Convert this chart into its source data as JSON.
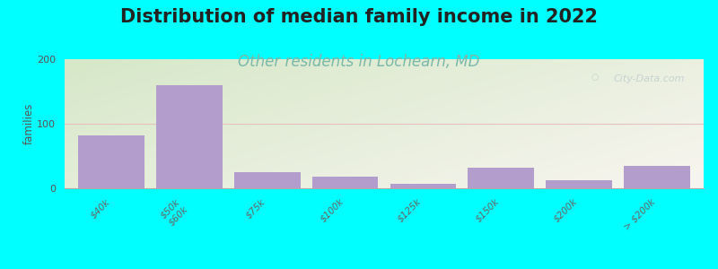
{
  "title": "Distribution of median family income in 2022",
  "subtitle": "Other residents in Lochearn, MD",
  "ylabel": "families",
  "background_color": "#00FFFF",
  "bar_color": "#b39dcc",
  "grid_color": "#e8c0c0",
  "categories": [
    "$40k",
    "$50k\n$60k",
    "$75k",
    "$100k",
    "$125k",
    "$150k",
    "$200k",
    "> $200k"
  ],
  "values": [
    82,
    160,
    25,
    18,
    7,
    32,
    13,
    35
  ],
  "ylim": [
    0,
    200
  ],
  "yticks": [
    0,
    100,
    200
  ],
  "title_fontsize": 15,
  "subtitle_fontsize": 12,
  "subtitle_color": "#7ab8a8",
  "watermark": "City-Data.com",
  "bar_width": 0.85,
  "plot_bg_left_top": "#d6e8c8",
  "plot_bg_right_bottom": "#f8f5f0"
}
